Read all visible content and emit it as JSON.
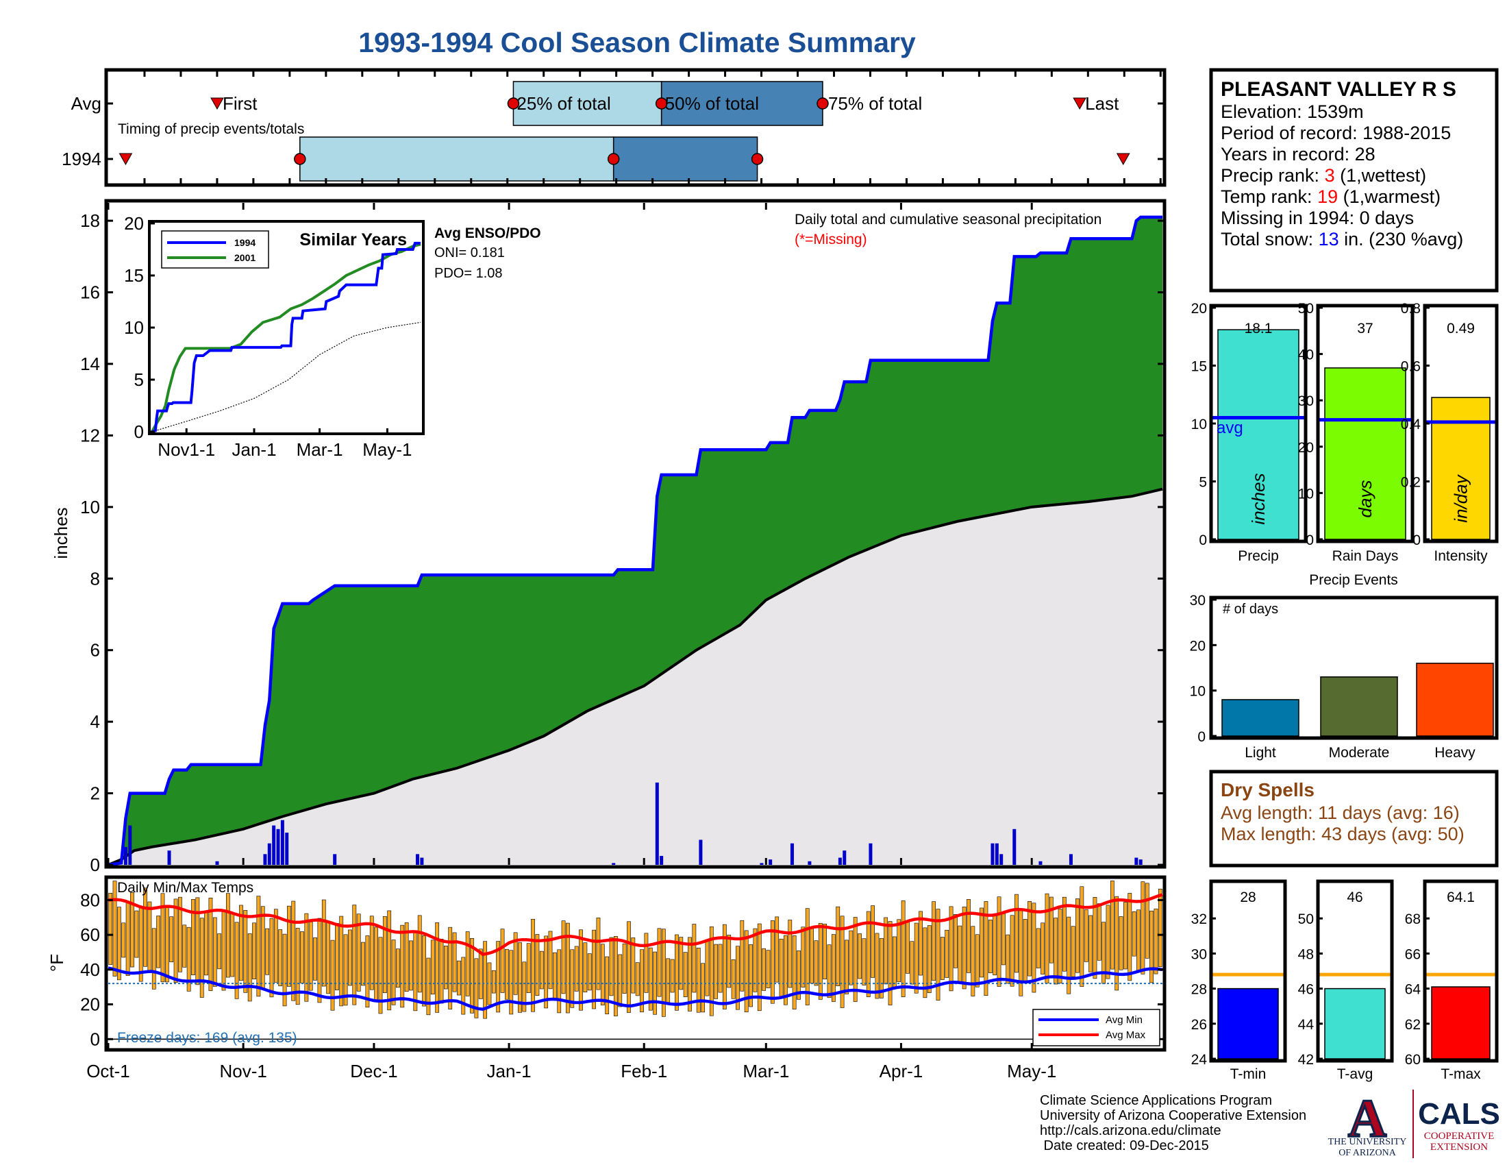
{
  "title": "1993-1994 Cool Season Climate Summary",
  "colors": {
    "title": "#1a4f96",
    "cum_fill": "#228b22",
    "cum_line": "#0000ff",
    "avg_fill": "#e8e6e8",
    "daily_bar": "#0000cd",
    "temp_bar": "#f5a623",
    "avg_max": "#ff0000",
    "avg_min": "#0000ff",
    "freeze": "#1f6fb4",
    "timing_light": "#add8e6",
    "timing_dark": "#4682b4",
    "rank_value": "#ff0000",
    "snow_value": "#0000ff",
    "dry_spell": "#8b4513",
    "precip_bar": "#40e0d0",
    "rain_days_bar": "#7cfc00",
    "intensity_bar": "#ffd700",
    "avg_line": "#0000ff",
    "light": "#0077a8",
    "moderate": "#556b2f",
    "heavy": "#ff4500",
    "tmin_bar": "#0000ff",
    "tavg_bar": "#40e0d0",
    "tmax_bar": "#ff0000",
    "temp_avg_line": "#ffa500"
  },
  "timing": {
    "row_labels": [
      "Avg",
      "1994"
    ],
    "caption": "Timing of precip events/totals",
    "first_label": "First",
    "p25_label": "25% of total",
    "p50_label": "50% of total",
    "p75_label": "75% of total",
    "last_label": "Last",
    "avg": {
      "first_day": 25,
      "p25_day": 93,
      "p50_day": 127,
      "p75_day": 164,
      "last_day": 223
    },
    "y1994": {
      "first_day": 4,
      "p25_day": 44,
      "p50_day": 116,
      "p75_day": 149,
      "last_day": 233
    }
  },
  "chart_data": [
    {
      "type": "area",
      "title": "Daily total and cumulative seasonal precipitation",
      "missing_note": "(*=Missing)",
      "ylabel": "inches",
      "ylim": [
        0,
        18.5
      ],
      "yticks": [
        "0",
        "2",
        "4",
        "6",
        "8",
        "10",
        "12",
        "14",
        "16",
        "18"
      ],
      "x_tick_labels": [
        "Oct-1",
        "Nov-1",
        "Dec-1",
        "Jan-1",
        "Feb-1",
        "Mar-1",
        "Apr-1",
        "May-1"
      ],
      "x_tick_days": [
        0,
        31,
        61,
        92,
        123,
        151,
        182,
        212
      ],
      "season_days": 242,
      "cumulative_1994": [
        [
          0,
          0
        ],
        [
          3,
          0.05
        ],
        [
          4,
          1.3
        ],
        [
          5,
          2.0
        ],
        [
          13,
          2.0
        ],
        [
          14,
          2.4
        ],
        [
          15,
          2.65
        ],
        [
          18,
          2.65
        ],
        [
          19,
          2.8
        ],
        [
          35,
          2.8
        ],
        [
          36,
          3.9
        ],
        [
          37,
          4.6
        ],
        [
          38,
          6.6
        ],
        [
          40,
          7.3
        ],
        [
          46,
          7.3
        ],
        [
          47,
          7.4
        ],
        [
          52,
          7.8
        ],
        [
          71,
          7.8
        ],
        [
          72,
          8.1
        ],
        [
          116,
          8.1
        ],
        [
          117,
          8.25
        ],
        [
          125,
          8.25
        ],
        [
          126,
          10.3
        ],
        [
          127,
          10.9
        ],
        [
          135,
          10.9
        ],
        [
          136,
          11.6
        ],
        [
          150,
          11.6
        ],
        [
          151,
          11.6
        ],
        [
          152,
          11.8
        ],
        [
          156,
          11.8
        ],
        [
          157,
          12.5
        ],
        [
          160,
          12.5
        ],
        [
          161,
          12.7
        ],
        [
          167,
          12.7
        ],
        [
          168,
          13.0
        ],
        [
          169,
          13.5
        ],
        [
          174,
          13.5
        ],
        [
          175,
          14.1
        ],
        [
          202,
          14.1
        ],
        [
          203,
          15.2
        ],
        [
          204,
          15.7
        ],
        [
          207,
          15.7
        ],
        [
          208,
          17.0
        ],
        [
          213,
          17.0
        ],
        [
          214,
          17.1
        ],
        [
          220,
          17.1
        ],
        [
          221,
          17.5
        ],
        [
          235,
          17.5
        ],
        [
          236,
          18.0
        ],
        [
          237,
          18.1
        ],
        [
          242,
          18.1
        ]
      ],
      "average_cumulative": [
        [
          0,
          0
        ],
        [
          3,
          0.15
        ],
        [
          6,
          0.4
        ],
        [
          10,
          0.5
        ],
        [
          20,
          0.7
        ],
        [
          31,
          1.0
        ],
        [
          40,
          1.35
        ],
        [
          50,
          1.7
        ],
        [
          61,
          2.0
        ],
        [
          70,
          2.4
        ],
        [
          80,
          2.7
        ],
        [
          92,
          3.2
        ],
        [
          100,
          3.6
        ],
        [
          110,
          4.3
        ],
        [
          123,
          5.0
        ],
        [
          135,
          6.0
        ],
        [
          145,
          6.7
        ],
        [
          151,
          7.4
        ],
        [
          160,
          8.0
        ],
        [
          170,
          8.6
        ],
        [
          182,
          9.2
        ],
        [
          195,
          9.6
        ],
        [
          212,
          10.0
        ],
        [
          225,
          10.15
        ],
        [
          235,
          10.3
        ],
        [
          242,
          10.5
        ]
      ],
      "daily": [
        [
          4,
          0.5
        ],
        [
          5,
          1.1
        ],
        [
          14,
          0.4
        ],
        [
          25,
          0.1
        ],
        [
          36,
          0.3
        ],
        [
          37,
          0.6
        ],
        [
          38,
          1.1
        ],
        [
          39,
          1.0
        ],
        [
          40,
          1.25
        ],
        [
          41,
          0.9
        ],
        [
          52,
          0.3
        ],
        [
          71,
          0.3
        ],
        [
          72,
          0.2
        ],
        [
          116,
          0.05
        ],
        [
          126,
          2.3
        ],
        [
          127,
          0.25
        ],
        [
          136,
          0.7
        ],
        [
          150,
          0.05
        ],
        [
          152,
          0.15
        ],
        [
          157,
          0.6
        ],
        [
          161,
          0.1
        ],
        [
          168,
          0.2
        ],
        [
          169,
          0.4
        ],
        [
          175,
          0.6
        ],
        [
          203,
          0.6
        ],
        [
          204,
          0.6
        ],
        [
          205,
          0.3
        ],
        [
          208,
          1.0
        ],
        [
          214,
          0.1
        ],
        [
          221,
          0.3
        ],
        [
          236,
          0.2
        ],
        [
          237,
          0.15
        ]
      ]
    },
    {
      "type": "line",
      "title": "Similar Years",
      "legend": [
        "1994",
        "2001"
      ],
      "ylim": [
        0,
        20
      ],
      "yticks": [
        "0",
        "5",
        "10",
        "15",
        "20"
      ],
      "x_tick_labels": [
        "Nov1-1",
        "Jan-1",
        "Mar-1",
        "May-1"
      ],
      "x_tick_days": [
        31,
        92,
        151,
        212
      ],
      "series": [
        {
          "name": "1994",
          "values": [
            [
              0,
              0
            ],
            [
              3,
              0.1
            ],
            [
              4,
              1.2
            ],
            [
              5,
              2.0
            ],
            [
              13,
              2.0
            ],
            [
              14,
              2.4
            ],
            [
              15,
              2.7
            ],
            [
              18,
              2.7
            ],
            [
              19,
              2.8
            ],
            [
              35,
              2.8
            ],
            [
              36,
              3.9
            ],
            [
              38,
              6.6
            ],
            [
              40,
              7.3
            ],
            [
              46,
              7.3
            ],
            [
              52,
              7.8
            ],
            [
              71,
              7.8
            ],
            [
              72,
              8.1
            ],
            [
              116,
              8.1
            ],
            [
              117,
              8.25
            ],
            [
              125,
              8.25
            ],
            [
              126,
              10.3
            ],
            [
              127,
              10.9
            ],
            [
              135,
              10.9
            ],
            [
              136,
              11.6
            ],
            [
              156,
              11.8
            ],
            [
              157,
              12.5
            ],
            [
              168,
              13.0
            ],
            [
              169,
              13.5
            ],
            [
              175,
              14.1
            ],
            [
              202,
              14.1
            ],
            [
              204,
              15.7
            ],
            [
              207,
              15.7
            ],
            [
              208,
              17.0
            ],
            [
              220,
              17.1
            ],
            [
              221,
              17.5
            ],
            [
              235,
              17.5
            ],
            [
              237,
              18.1
            ],
            [
              242,
              18.1
            ]
          ]
        },
        {
          "name": "2001",
          "values": [
            [
              0,
              0
            ],
            [
              4,
              0.8
            ],
            [
              8,
              1.5
            ],
            [
              12,
              2.5
            ],
            [
              15,
              4.0
            ],
            [
              20,
              6.0
            ],
            [
              25,
              7.2
            ],
            [
              30,
              8.0
            ],
            [
              40,
              8.0
            ],
            [
              55,
              8.0
            ],
            [
              70,
              8.0
            ],
            [
              80,
              8.4
            ],
            [
              90,
              9.6
            ],
            [
              100,
              10.5
            ],
            [
              115,
              11.0
            ],
            [
              125,
              11.8
            ],
            [
              135,
              12.2
            ],
            [
              145,
              12.8
            ],
            [
              155,
              13.5
            ],
            [
              165,
              14.2
            ],
            [
              175,
              15.0
            ],
            [
              185,
              15.5
            ],
            [
              195,
              16.0
            ],
            [
              205,
              16.4
            ],
            [
              215,
              17.0
            ],
            [
              225,
              17.3
            ],
            [
              235,
              17.8
            ],
            [
              242,
              18.0
            ]
          ]
        },
        {
          "name": "average",
          "values": [
            [
              0,
              0
            ],
            [
              31,
              1.0
            ],
            [
              61,
              2.0
            ],
            [
              92,
              3.2
            ],
            [
              123,
              5.0
            ],
            [
              151,
              7.4
            ],
            [
              182,
              9.2
            ],
            [
              212,
              10.0
            ],
            [
              242,
              10.5
            ]
          ]
        }
      ]
    },
    {
      "type": "bar",
      "title": "Daily Min/Max Temps",
      "ylabel": "°F",
      "ylim": [
        -5,
        92
      ],
      "yticks": [
        "0",
        "20",
        "40",
        "60",
        "80"
      ],
      "freeze_note": "Freeze days: 169 (avg. 135)",
      "legend": [
        "Avg Min",
        "Avg Max"
      ],
      "avg_max": [
        [
          0,
          80
        ],
        [
          10,
          76
        ],
        [
          20,
          74
        ],
        [
          31,
          72
        ],
        [
          40,
          69
        ],
        [
          50,
          67
        ],
        [
          61,
          65
        ],
        [
          70,
          61
        ],
        [
          80,
          56
        ],
        [
          86,
          49
        ],
        [
          92,
          55
        ],
        [
          100,
          58
        ],
        [
          110,
          58
        ],
        [
          120,
          55
        ],
        [
          130,
          55
        ],
        [
          140,
          57
        ],
        [
          151,
          61
        ],
        [
          160,
          63
        ],
        [
          170,
          65
        ],
        [
          182,
          67
        ],
        [
          190,
          69
        ],
        [
          200,
          72
        ],
        [
          212,
          74
        ],
        [
          222,
          76
        ],
        [
          232,
          79
        ],
        [
          242,
          82
        ]
      ],
      "avg_min": [
        [
          0,
          40
        ],
        [
          10,
          38
        ],
        [
          20,
          33
        ],
        [
          31,
          30
        ],
        [
          40,
          27
        ],
        [
          50,
          25
        ],
        [
          61,
          23
        ],
        [
          70,
          22
        ],
        [
          80,
          21
        ],
        [
          86,
          18
        ],
        [
          92,
          21
        ],
        [
          100,
          22
        ],
        [
          110,
          22
        ],
        [
          120,
          20
        ],
        [
          130,
          21
        ],
        [
          140,
          21
        ],
        [
          151,
          24
        ],
        [
          160,
          26
        ],
        [
          170,
          27
        ],
        [
          182,
          29
        ],
        [
          190,
          31
        ],
        [
          200,
          33
        ],
        [
          212,
          34
        ],
        [
          222,
          36
        ],
        [
          232,
          38
        ],
        [
          242,
          40
        ]
      ],
      "freeze_line": 32
    },
    {
      "type": "bar",
      "categories": [
        "Precip",
        "Rain Days",
        "Intensity"
      ],
      "values": [
        18.1,
        37,
        0.49
      ],
      "value_labels": [
        "18.1",
        "37",
        "0.49"
      ],
      "averages": [
        10.5,
        25.8,
        0.405
      ],
      "units": [
        "inches",
        "days",
        "in/day"
      ],
      "ylims": [
        [
          0,
          20
        ],
        [
          0,
          50
        ],
        [
          0,
          0.8
        ]
      ],
      "yticks": [
        [
          "0",
          "5",
          "10",
          "15",
          "20"
        ],
        [
          "0",
          "10",
          "20",
          "30",
          "40",
          "50"
        ],
        [
          "0",
          "0.2",
          "0.4",
          "0.6",
          "0.8"
        ]
      ],
      "avg_label": "avg"
    },
    {
      "type": "bar",
      "title": "Precip Events",
      "ylabel": "# of days",
      "categories": [
        "Light",
        "Moderate",
        "Heavy"
      ],
      "values": [
        8,
        13,
        16
      ],
      "ylim": [
        0,
        30
      ],
      "yticks": [
        "0",
        "10",
        "20",
        "30"
      ]
    },
    {
      "type": "bar",
      "categories": [
        "T-min",
        "T-avg",
        "T-max"
      ],
      "values": [
        28,
        46,
        64.1
      ],
      "value_labels": [
        "28",
        "46",
        "64.1"
      ],
      "averages": [
        28.8,
        46.8,
        64.8
      ],
      "ylims": [
        [
          24,
          34
        ],
        [
          42,
          52
        ],
        [
          60,
          70
        ]
      ],
      "yticks": [
        [
          "24",
          "26",
          "28",
          "30",
          "32"
        ],
        [
          "42",
          "44",
          "46",
          "48",
          "50"
        ],
        [
          "60",
          "62",
          "64",
          "66",
          "68"
        ]
      ]
    }
  ],
  "station": {
    "name": "PLEASANT VALLEY R S",
    "elevation_label": "Elevation:",
    "elevation": "1539m",
    "period_label": "Period of record:",
    "period": "1988-2015",
    "years_label": "Years in record:",
    "years": "28",
    "precip_rank_label": "Precip rank:",
    "precip_rank": "3",
    "precip_rank_note": "(1,wettest)",
    "temp_rank_label": "Temp rank:",
    "temp_rank": "19",
    "temp_rank_note": "(1,warmest)",
    "missing_label": "Missing in 1994:",
    "missing": "0 days",
    "snow_label": "Total snow:",
    "snow": "13",
    "snow_note": "in. (230 %avg)"
  },
  "enso": {
    "title": "Avg ENSO/PDO",
    "oni": "ONI= 0.181",
    "pdo": "PDO= 1.08"
  },
  "dry_spells": {
    "title": "Dry Spells",
    "avg_length": "Avg length: 11 days (avg: 16)",
    "max_length": "Max length: 43 days (avg: 50)"
  },
  "footer": {
    "line1": "Climate Science Applications Program",
    "line2": "University of Arizona Cooperative Extension",
    "line3": "http://cals.arizona.edu/climate",
    "line4": " Date created: 09-Dec-2015"
  },
  "logos": {
    "ua_letter": "A",
    "ua_line1": "THE UNIVERSITY",
    "ua_line2": "OF ARIZONA",
    "cals": "CALS",
    "cals_line1": "COOPERATIVE",
    "cals_line2": "EXTENSION"
  }
}
